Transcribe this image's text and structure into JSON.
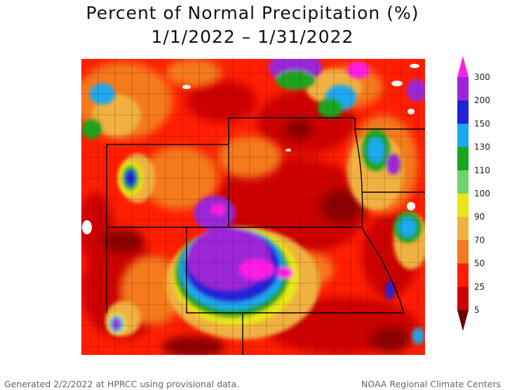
{
  "header": {
    "title": "Percent of Normal Precipitation (%)",
    "date_range": "1/1/2022 – 1/31/2022"
  },
  "legend": {
    "classes": [
      {
        "label": "5",
        "color": "#8b0000"
      },
      {
        "label": "25",
        "color": "#cd0000"
      },
      {
        "label": "50",
        "color": "#ff1e00"
      },
      {
        "label": "70",
        "color": "#f47a1f"
      },
      {
        "label": "90",
        "color": "#f0b142"
      },
      {
        "label": "100",
        "color": "#e8e816"
      },
      {
        "label": "110",
        "color": "#6dd36b"
      },
      {
        "label": "130",
        "color": "#1aa51c"
      },
      {
        "label": "150",
        "color": "#1ba9f0"
      },
      {
        "label": "200",
        "color": "#2222d8"
      },
      {
        "label": "300",
        "color": "#9b25d8"
      }
    ],
    "top_arrow_color": "#ff1ee6",
    "bottom_arrow_color": "#6b0000"
  },
  "footer": {
    "left": "Generated 2/2/2022 at HPRCC using provisional data.",
    "right": "NOAA Regional Climate Centers"
  }
}
